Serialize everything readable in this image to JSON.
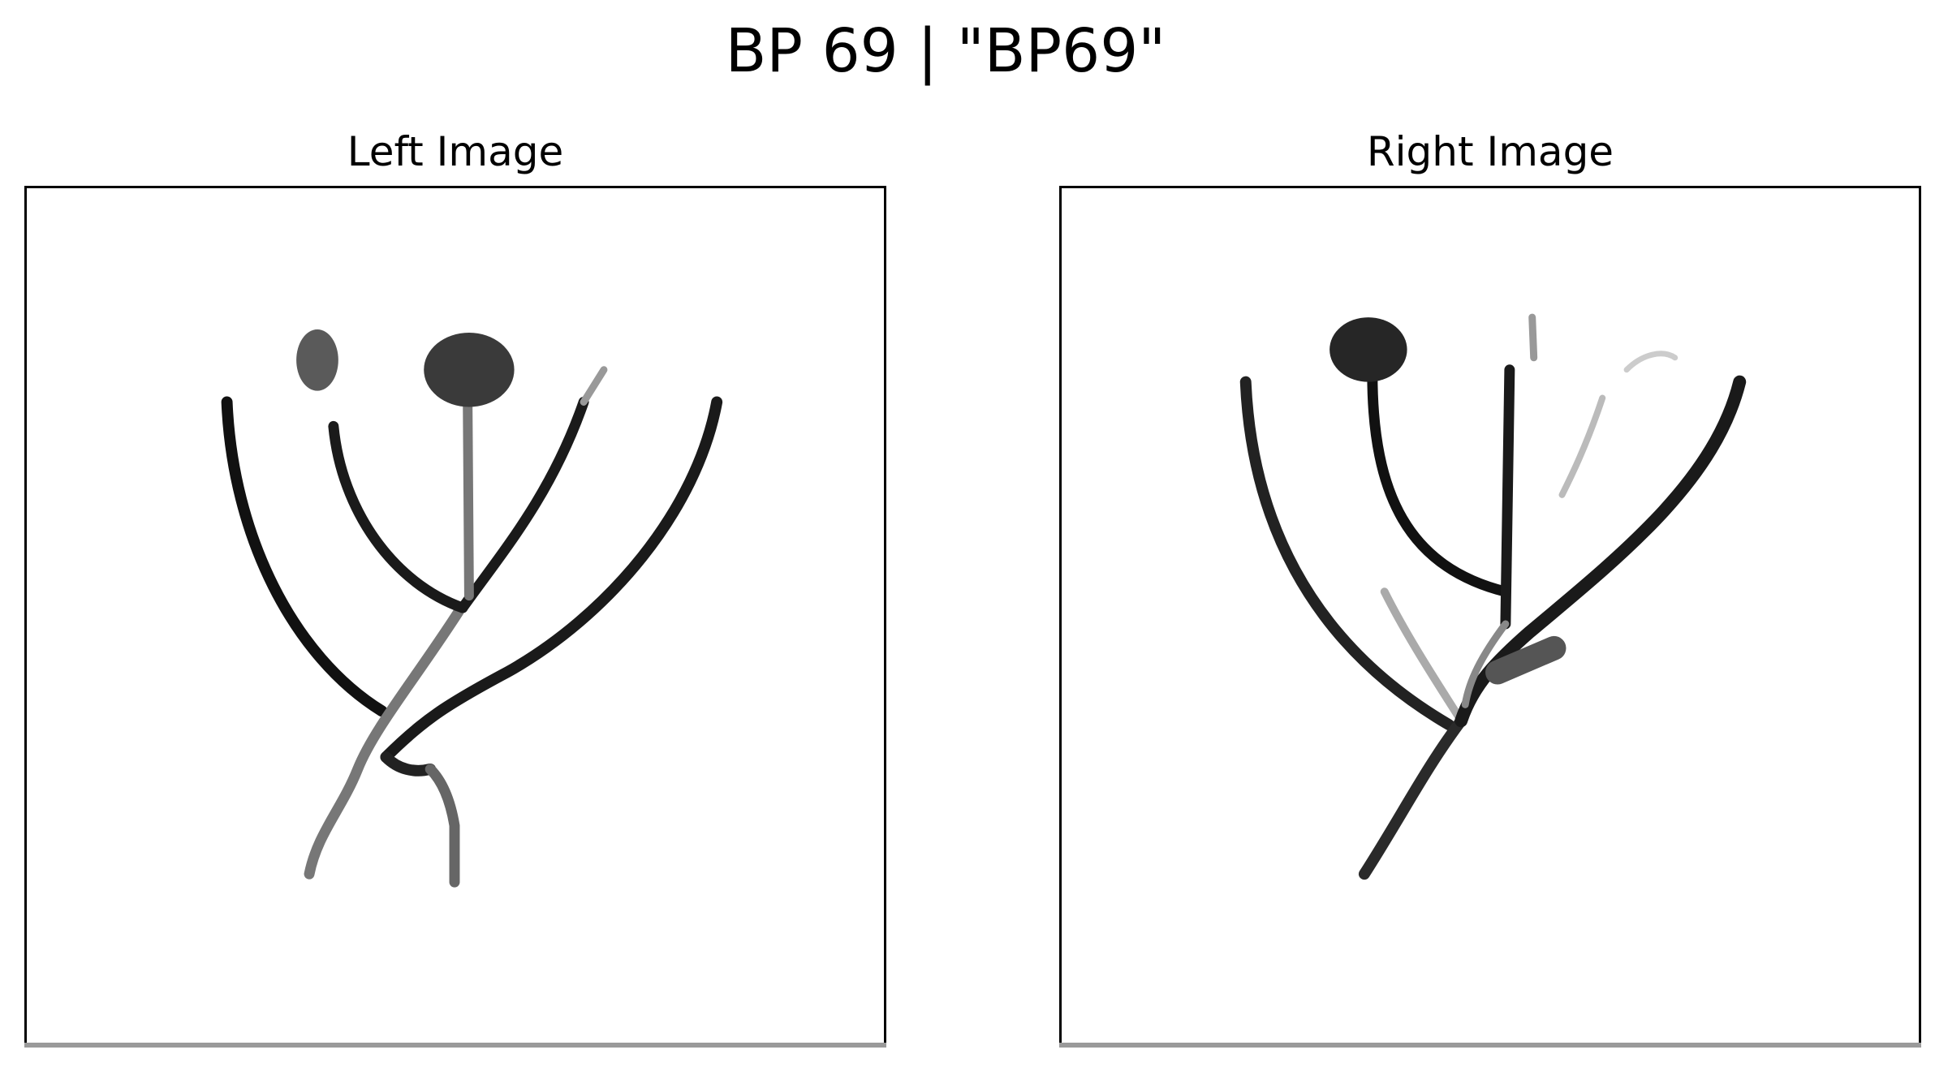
{
  "figure": {
    "title": "BP 69 | \"BP69\""
  },
  "panels": {
    "left": {
      "title": "Left Image"
    },
    "right": {
      "title": "Right Image"
    }
  }
}
